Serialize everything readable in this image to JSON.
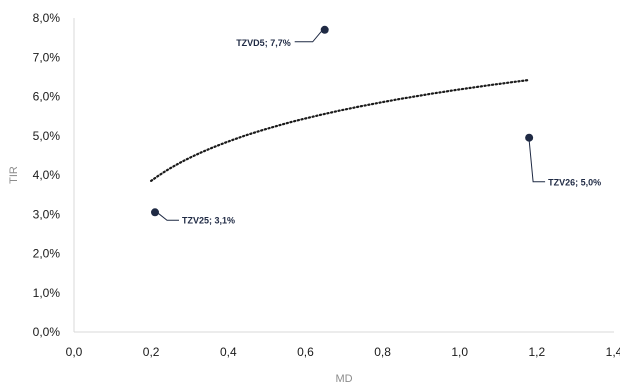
{
  "chart_data": {
    "type": "scatter",
    "title": "",
    "xlabel": "MD",
    "ylabel": "TIR",
    "xlim": [
      0,
      1.4
    ],
    "ylim": [
      0,
      8
    ],
    "x_ticks": [
      "0,0",
      "0,2",
      "0,4",
      "0,6",
      "0,8",
      "1,0",
      "1,2",
      "1,4"
    ],
    "y_ticks": [
      "0,0%",
      "1,0%",
      "2,0%",
      "3,0%",
      "4,0%",
      "5,0%",
      "6,0%",
      "7,0%",
      "8,0%"
    ],
    "grid": false,
    "legend": "none",
    "series": [
      {
        "points": [
          {
            "label": "TZVD5; 7,7%",
            "x": 0.65,
            "y": 7.7
          },
          {
            "label": "TZV26; 5,0%",
            "x": 1.18,
            "y": 4.95
          },
          {
            "label": "TZV25; 3,1%",
            "x": 0.21,
            "y": 3.05
          }
        ]
      }
    ],
    "trendline": {
      "style": "dotted",
      "type": "logarithmic",
      "x_start": 0.2,
      "x_end": 1.18,
      "samples": [
        {
          "x": 0.2,
          "y": 3.85
        },
        {
          "x": 0.3,
          "y": 4.45
        },
        {
          "x": 0.4,
          "y": 4.85
        },
        {
          "x": 0.6,
          "y": 5.5
        },
        {
          "x": 0.8,
          "y": 5.9
        },
        {
          "x": 1.0,
          "y": 6.2
        },
        {
          "x": 1.18,
          "y": 6.42
        }
      ]
    },
    "colors": {
      "point": "#1f2a44",
      "label": "#1f2a44",
      "trendline": "#1a1a1a",
      "axis": "#d9d9d9",
      "tick": "#1a1a1a",
      "axis_title": "#8c8c8c"
    }
  }
}
